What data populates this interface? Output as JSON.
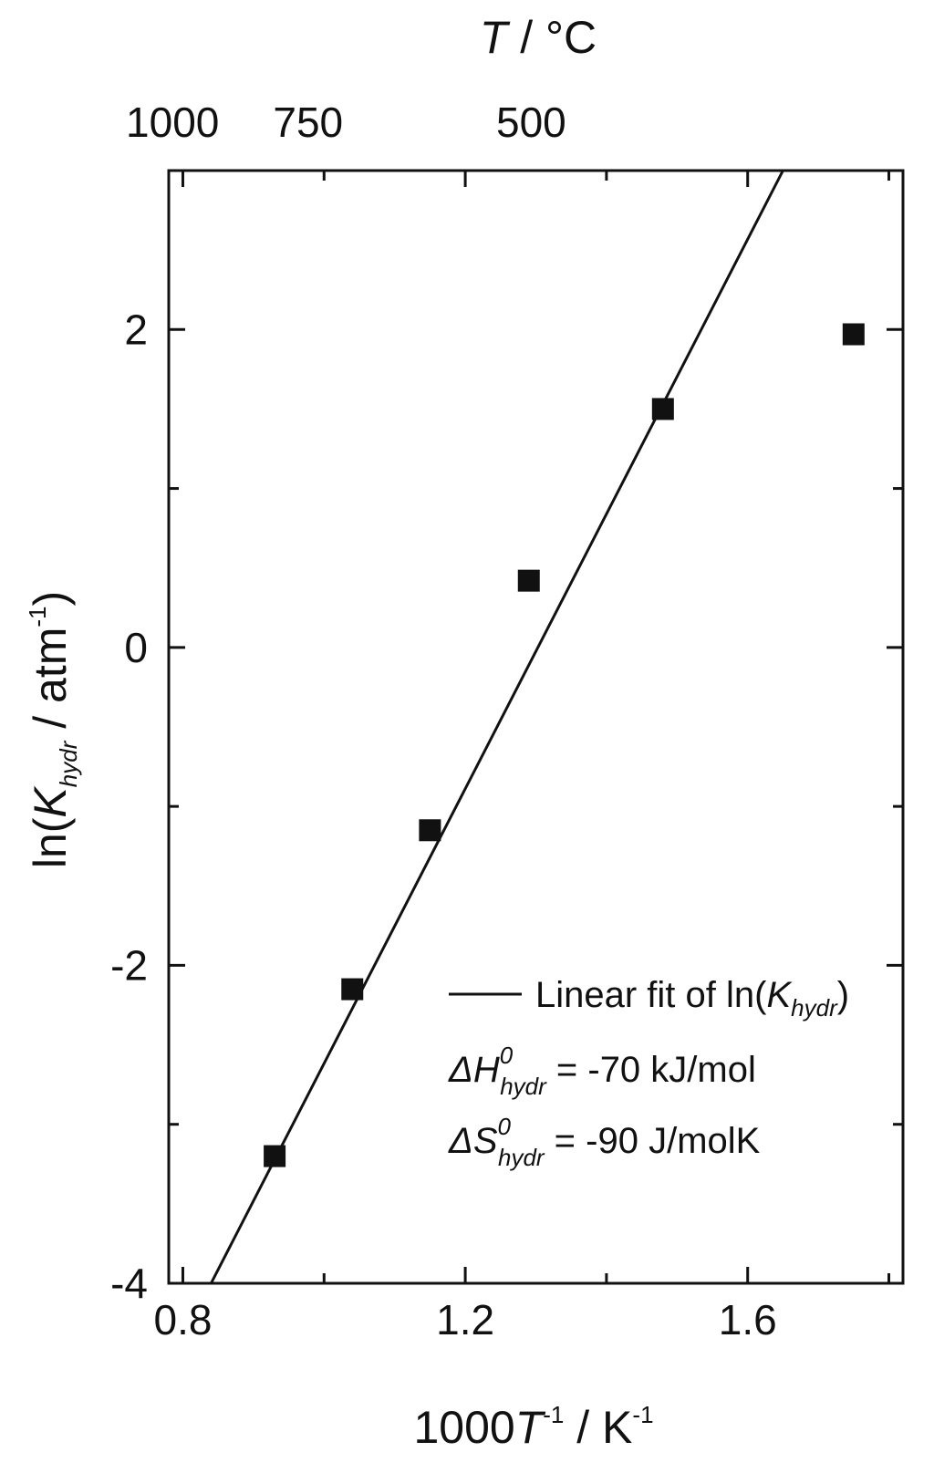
{
  "chart_data": {
    "type": "scatter",
    "xlabel": {
      "prefix": "1000",
      "var": "T",
      "exp": "-1",
      "unit": " / K",
      "unit_exp": "-1"
    },
    "ylabel": {
      "prefix": "ln(",
      "var": "K",
      "sub": "hydr",
      "unit": " / atm",
      "unit_exp": "-1",
      "suffix": ")"
    },
    "top_axis_title": {
      "var": "T",
      "unit": " / °C"
    },
    "xlim": [
      0.78,
      1.82
    ],
    "ylim": [
      -4,
      3
    ],
    "x_ticks": [
      0.8,
      1.2,
      1.6
    ],
    "x_tick_labels": [
      "0.8",
      "1.2",
      "1.6"
    ],
    "x_minor_ticks": [
      0.8,
      1.0,
      1.2,
      1.4,
      1.6,
      1.8
    ],
    "y_ticks": [
      -4,
      -2,
      0,
      2
    ],
    "y_tick_labels": [
      "-4",
      "-2",
      "0",
      "2"
    ],
    "y_minor_ticks": [
      -4,
      -3,
      -2,
      -1,
      0,
      1,
      2
    ],
    "top_ticks": [
      {
        "celsius": 1000,
        "label": "1000"
      },
      {
        "celsius": 750,
        "label": "750"
      },
      {
        "celsius": 500,
        "label": "500"
      }
    ],
    "points": [
      {
        "x": 0.93,
        "y": -3.2
      },
      {
        "x": 1.04,
        "y": -2.15
      },
      {
        "x": 1.15,
        "y": -1.15
      },
      {
        "x": 1.29,
        "y": 0.42
      },
      {
        "x": 1.48,
        "y": 1.5
      },
      {
        "x": 1.75,
        "y": 1.97
      }
    ],
    "fit_line": {
      "x1": 0.84,
      "y1": -4.0,
      "x2": 1.65,
      "y2": 3.0
    },
    "legend": {
      "fit_label_prefix": "Linear fit of ln(",
      "fit_label_var": "K",
      "fit_label_sub": "hydr",
      "fit_label_suffix": ")",
      "dh_symbol": "ΔH",
      "dh_sup": "0",
      "dh_sub": "hydr",
      "dh_value": " = -70 kJ/mol",
      "ds_symbol": "ΔS",
      "ds_sup": "0",
      "ds_sub": "hydr",
      "ds_value": " = -90 J/molK"
    },
    "grid": false,
    "colors": {
      "axis": "#111111",
      "marker": "#111111",
      "line": "#111111"
    }
  }
}
